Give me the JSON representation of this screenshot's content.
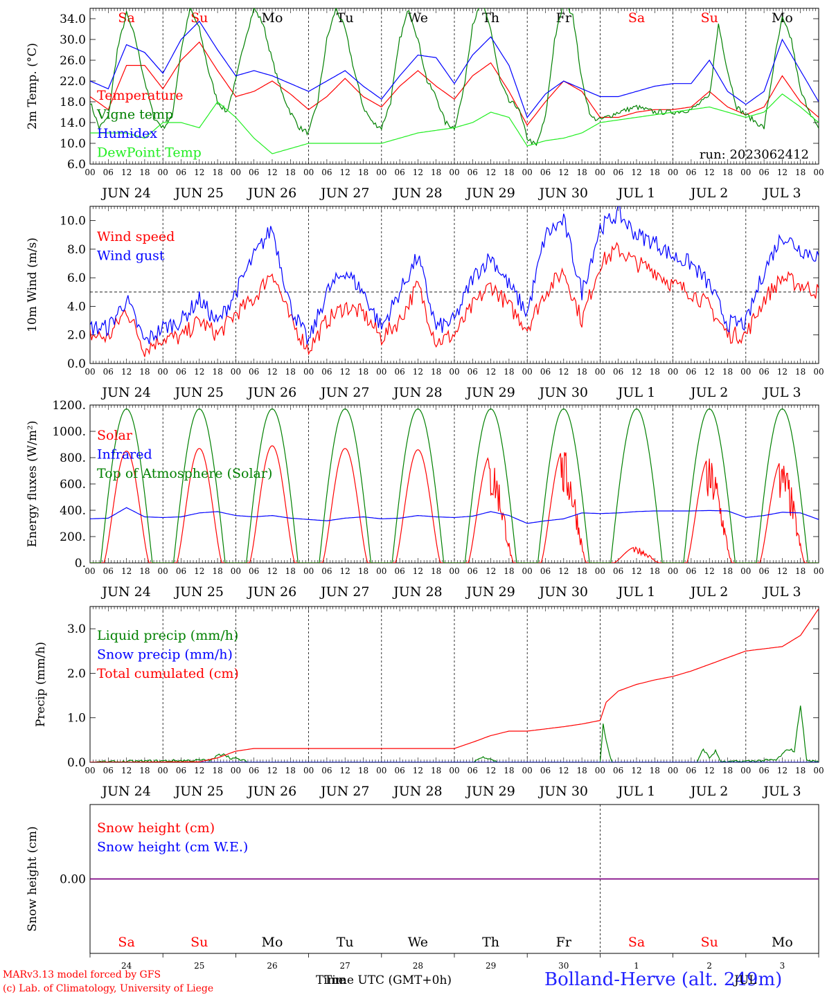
{
  "run_label": "run: 2023062412",
  "days": [
    {
      "dow": "Sa",
      "date": "JUN 24",
      "dnum": "24",
      "weekend": true
    },
    {
      "dow": "Su",
      "date": "JUN 25",
      "dnum": "25",
      "weekend": true
    },
    {
      "dow": "Mo",
      "date": "JUN 26",
      "dnum": "26",
      "weekend": false
    },
    {
      "dow": "Tu",
      "date": "JUN 27",
      "dnum": "27",
      "weekend": false
    },
    {
      "dow": "We",
      "date": "JUN 28",
      "dnum": "28",
      "weekend": false
    },
    {
      "dow": "Th",
      "date": "JUN 29",
      "dnum": "29",
      "weekend": false
    },
    {
      "dow": "Fr",
      "date": "JUN 30",
      "dnum": "30",
      "weekend": false
    },
    {
      "dow": "Sa",
      "date": "JUL  1",
      "dnum": "1",
      "weekend": true
    },
    {
      "dow": "Su",
      "date": "JUL  2",
      "dnum": "2",
      "weekend": true
    },
    {
      "dow": "Mo",
      "date": "JUL  3",
      "dnum": "3",
      "weekend": false
    }
  ],
  "hour_ticks": [
    "00",
    "06",
    "12",
    "18"
  ],
  "colors": {
    "red": "#ff0000",
    "blue": "#0000ff",
    "green": "#008000",
    "lightgreen": "#22ee22",
    "purple": "#800080"
  },
  "chart_data": [
    {
      "type": "line",
      "ylabel": "2m Temp. (°C)",
      "ylim": [
        6,
        36
      ],
      "yticks": [
        "6.0",
        "10.0",
        "14.0",
        "18.0",
        "22.0",
        "26.0",
        "30.0",
        "34.0"
      ],
      "x_unit": "hours since JUN 24 00 UTC",
      "series": [
        {
          "name": "Temperature",
          "color": "#ff0000",
          "x": [
            0,
            6,
            12,
            18,
            24,
            30,
            36,
            42,
            48,
            54,
            60,
            66,
            72,
            78,
            84,
            90,
            96,
            102,
            108,
            114,
            120,
            126,
            132,
            138,
            144,
            150,
            156,
            162,
            168,
            174,
            180,
            186,
            192,
            198,
            204,
            210,
            216,
            222,
            228,
            234,
            240
          ],
          "values": [
            19,
            16.5,
            25,
            25,
            20.5,
            26,
            29.5,
            24,
            19,
            20,
            22,
            19.5,
            16.5,
            19,
            22.5,
            19,
            17,
            21,
            24,
            21,
            18.5,
            23,
            25.5,
            20,
            13.5,
            18,
            22,
            20,
            15,
            15,
            16,
            16.5,
            16.5,
            17,
            20,
            17,
            15.5,
            17,
            23,
            18,
            15
          ]
        },
        {
          "name": "Vigne temp",
          "color": "#008000",
          "x": [
            0,
            3,
            6,
            9,
            12,
            15,
            18,
            21,
            24,
            27,
            30,
            33,
            36,
            39,
            42,
            45,
            48,
            51,
            54,
            57,
            60,
            63,
            66,
            69,
            72,
            75,
            78,
            81,
            84,
            87,
            90,
            93,
            96,
            99,
            102,
            105,
            108,
            111,
            114,
            117,
            120,
            123,
            126,
            129,
            132,
            135,
            138,
            141,
            144,
            147,
            150,
            153,
            156,
            159,
            162,
            165,
            168,
            174,
            180,
            186,
            192,
            198,
            204,
            207,
            210,
            213,
            216,
            222,
            226,
            228,
            231,
            234,
            240
          ],
          "values": [
            18,
            13,
            15,
            28,
            35,
            30,
            22,
            15,
            13,
            15,
            28,
            36,
            32,
            24,
            18,
            16,
            22,
            30,
            36,
            33,
            26,
            20,
            16,
            13,
            12,
            18,
            30,
            36,
            32,
            24,
            17,
            14,
            13,
            18,
            30,
            36,
            30,
            22,
            19,
            14,
            13,
            20,
            33,
            37,
            32,
            22,
            18,
            17,
            11,
            9.5,
            15,
            30,
            37,
            35,
            22,
            15,
            14.5,
            16,
            17,
            16,
            16,
            16.5,
            19,
            33,
            24,
            17,
            15.5,
            13,
            28,
            34,
            30,
            20,
            12.5
          ]
        },
        {
          "name": "Humidex",
          "color": "#0000ff",
          "x": [
            0,
            6,
            12,
            18,
            24,
            30,
            36,
            42,
            48,
            54,
            60,
            66,
            72,
            78,
            84,
            90,
            96,
            102,
            108,
            114,
            120,
            126,
            132,
            138,
            144,
            150,
            156,
            162,
            168,
            174,
            180,
            186,
            192,
            198,
            204,
            210,
            216,
            222,
            228,
            234,
            240
          ],
          "values": [
            22,
            20.5,
            29,
            27.5,
            23.5,
            30,
            33.5,
            28,
            23,
            24,
            23,
            21.5,
            20,
            22,
            24,
            21,
            18.5,
            23,
            27,
            26.5,
            21.5,
            27,
            30.5,
            25,
            15,
            19.5,
            22,
            20.5,
            19,
            19,
            20,
            21,
            21.5,
            21.5,
            26,
            20,
            17.5,
            20,
            30,
            24,
            18
          ]
        },
        {
          "name": "DewPoint Temp",
          "color": "#22ee22",
          "x": [
            0,
            6,
            12,
            18,
            24,
            30,
            36,
            42,
            48,
            54,
            60,
            66,
            72,
            78,
            84,
            90,
            96,
            102,
            108,
            114,
            120,
            126,
            132,
            138,
            144,
            150,
            156,
            162,
            168,
            174,
            180,
            186,
            192,
            198,
            204,
            210,
            216,
            222,
            228,
            234,
            240
          ],
          "values": [
            12,
            12,
            12,
            11,
            14,
            14,
            13,
            18,
            15,
            11,
            8,
            9,
            10,
            10,
            10,
            10,
            10,
            11,
            12,
            12.5,
            13,
            14,
            16,
            15,
            9.5,
            10.5,
            11,
            12,
            14,
            14.5,
            15,
            15.5,
            16,
            16.5,
            17,
            16,
            15,
            16,
            19.5,
            17,
            14
          ]
        }
      ]
    },
    {
      "type": "line",
      "ylabel": "10m Wind (m/s)",
      "ylim": [
        0,
        11
      ],
      "yticks": [
        "0.0",
        "2.0",
        "4.0",
        "6.0",
        "8.0",
        "10.0"
      ],
      "reference_line": 5,
      "series": [
        {
          "name": "Wind speed",
          "color": "#ff0000",
          "x": [
            0,
            6,
            12,
            18,
            24,
            30,
            36,
            42,
            48,
            54,
            60,
            66,
            72,
            78,
            84,
            90,
            96,
            102,
            108,
            114,
            120,
            126,
            132,
            138,
            144,
            150,
            156,
            162,
            168,
            174,
            180,
            186,
            192,
            198,
            204,
            210,
            216,
            222,
            228,
            234,
            240
          ],
          "values": [
            2,
            1.8,
            3.8,
            1.0,
            1.8,
            1.8,
            3.0,
            2.0,
            3.5,
            4.5,
            6.5,
            3.0,
            1.0,
            3.0,
            4.0,
            3.5,
            1.8,
            3.0,
            5.5,
            1.5,
            2.0,
            4.0,
            5.5,
            4.0,
            2.5,
            5.0,
            6.5,
            3.0,
            7.0,
            8.0,
            7.0,
            6.5,
            5.5,
            5.0,
            4.0,
            2.0,
            2.0,
            4.5,
            6.0,
            5.5,
            5.0
          ]
        },
        {
          "name": "Wind gust",
          "color": "#0000ff",
          "x": [
            0,
            6,
            12,
            18,
            24,
            30,
            36,
            42,
            48,
            54,
            60,
            66,
            72,
            78,
            84,
            90,
            96,
            102,
            108,
            114,
            120,
            126,
            132,
            138,
            144,
            150,
            156,
            162,
            168,
            174,
            180,
            186,
            192,
            198,
            204,
            210,
            216,
            222,
            228,
            234,
            240
          ],
          "values": [
            2.5,
            2.5,
            4.5,
            1.5,
            2.5,
            3.0,
            4.5,
            2.8,
            5.0,
            7.5,
            9.5,
            4.0,
            1.5,
            5.0,
            6.5,
            5.0,
            2.5,
            5.0,
            7.5,
            2.5,
            3.0,
            6.0,
            7.5,
            5.5,
            3.5,
            9.0,
            10.0,
            5.0,
            9.5,
            10.5,
            9.0,
            8.5,
            7.5,
            7.0,
            5.5,
            2.8,
            2.8,
            6.5,
            9.0,
            8.0,
            7.5
          ]
        }
      ]
    },
    {
      "type": "line",
      "ylabel": "Energy fluxes (W/m²)",
      "ylim": [
        0,
        1200
      ],
      "yticks": [
        "0.",
        "200.",
        "400.",
        "600.",
        "800.",
        "1000.",
        "1200."
      ],
      "series": [
        {
          "name": "Solar",
          "color": "#ff0000",
          "daily_peak": [
            850,
            870,
            890,
            870,
            860,
            820,
            860,
            120,
            800,
            780
          ]
        },
        {
          "name": "Infrared",
          "color": "#0000ff",
          "x": [
            0,
            6,
            12,
            18,
            24,
            30,
            36,
            42,
            48,
            54,
            60,
            66,
            72,
            78,
            84,
            90,
            96,
            102,
            108,
            114,
            120,
            126,
            132,
            138,
            144,
            150,
            156,
            162,
            168,
            174,
            180,
            186,
            192,
            198,
            204,
            210,
            216,
            222,
            228,
            234,
            240
          ],
          "values": [
            335,
            340,
            420,
            350,
            345,
            350,
            380,
            390,
            360,
            350,
            360,
            340,
            330,
            320,
            340,
            350,
            335,
            340,
            360,
            350,
            345,
            355,
            390,
            360,
            300,
            320,
            335,
            380,
            375,
            380,
            390,
            395,
            395,
            395,
            398,
            395,
            345,
            360,
            385,
            380,
            330
          ]
        },
        {
          "name": "Top of Atmosphere (Solar)",
          "color": "#008000",
          "daily_peak": [
            1170,
            1170,
            1170,
            1170,
            1170,
            1170,
            1170,
            1170,
            1170,
            1170
          ]
        }
      ]
    },
    {
      "type": "line",
      "ylabel": "Precip (mm/h)",
      "ylim": [
        0,
        3.5
      ],
      "yticks": [
        "0.0",
        "1.0",
        "2.0",
        "3.0"
      ],
      "series": [
        {
          "name": "Liquid precip (mm/h)",
          "color": "#008000",
          "x": [
            0,
            40,
            42,
            44,
            46,
            48,
            50,
            52,
            126,
            128,
            130,
            132,
            134,
            168,
            169,
            170,
            171,
            172,
            200,
            202,
            204,
            206,
            208,
            226,
            230,
            232,
            234,
            236,
            240
          ],
          "values": [
            0,
            0.05,
            0.15,
            0.2,
            0.1,
            0.08,
            0.05,
            0,
            0,
            0.08,
            0.12,
            0.08,
            0,
            0,
            0.85,
            0.5,
            0.2,
            0,
            0,
            0.3,
            0.1,
            0.25,
            0,
            0.05,
            0.3,
            0.25,
            1.3,
            0.05,
            0
          ]
        },
        {
          "name": "Snow precip (mm/h)",
          "color": "#0000ff",
          "x": [
            0,
            240
          ],
          "values": [
            0,
            0
          ]
        },
        {
          "name": "Total cumulated (cm)",
          "color": "#ff0000",
          "x": [
            0,
            36,
            42,
            48,
            54,
            60,
            72,
            96,
            120,
            126,
            132,
            138,
            144,
            150,
            156,
            162,
            168,
            170,
            174,
            180,
            186,
            192,
            198,
            204,
            210,
            216,
            222,
            228,
            234,
            240
          ],
          "values": [
            0,
            0.01,
            0.1,
            0.25,
            0.31,
            0.31,
            0.31,
            0.31,
            0.31,
            0.45,
            0.6,
            0.7,
            0.7,
            0.75,
            0.8,
            0.86,
            0.94,
            1.35,
            1.6,
            1.75,
            1.85,
            1.93,
            2.05,
            2.2,
            2.35,
            2.5,
            2.55,
            2.6,
            2.85,
            3.45
          ]
        }
      ]
    },
    {
      "type": "line",
      "ylabel": "Snow height (cm)",
      "yticks": [
        "0.00"
      ],
      "series": [
        {
          "name": "Snow height (cm)",
          "color": "#ff0000",
          "x": [
            0,
            240
          ],
          "values": [
            0,
            0
          ]
        },
        {
          "name": "Snow height (cm W.E.)",
          "color": "#0000ff",
          "x": [
            0,
            240
          ],
          "values": [
            0,
            0
          ]
        }
      ]
    }
  ],
  "xlabel": "Time UTC (GMT+0h)",
  "footer": {
    "model_line": "MARv3.13 model forced by GFS",
    "credit_line": "(c) Lab. of Climatology, University of Liege",
    "station": "Bolland-Herve (alt. 249m)",
    "overlap_month": "JUL",
    "overlap_short": "Time"
  }
}
